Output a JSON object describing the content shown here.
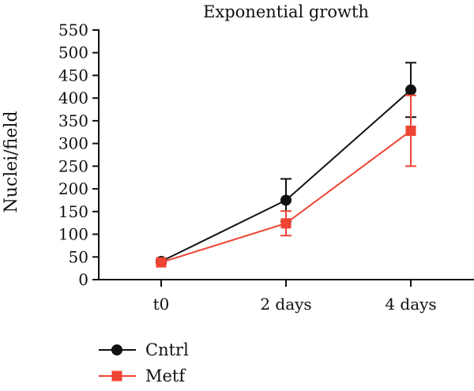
{
  "chart_data": {
    "type": "line",
    "title": "Exponential growth",
    "xlabel": "",
    "ylabel": "Nuclei/field",
    "categories": [
      "t0",
      "2 days",
      "4 days"
    ],
    "ylim": [
      0,
      550
    ],
    "yticks": [
      0,
      50,
      100,
      150,
      200,
      250,
      300,
      350,
      400,
      450,
      500,
      550
    ],
    "grid": false,
    "legend_position": "bottom-left",
    "series": [
      {
        "name": "Cntrl",
        "color": "#111111",
        "marker": "circle",
        "values": [
          40,
          175,
          418
        ],
        "error": [
          3,
          47,
          60
        ]
      },
      {
        "name": "Metf",
        "color": "#ee4433",
        "marker": "square",
        "values": [
          38,
          124,
          328
        ],
        "error": [
          3,
          27,
          78
        ]
      }
    ]
  }
}
